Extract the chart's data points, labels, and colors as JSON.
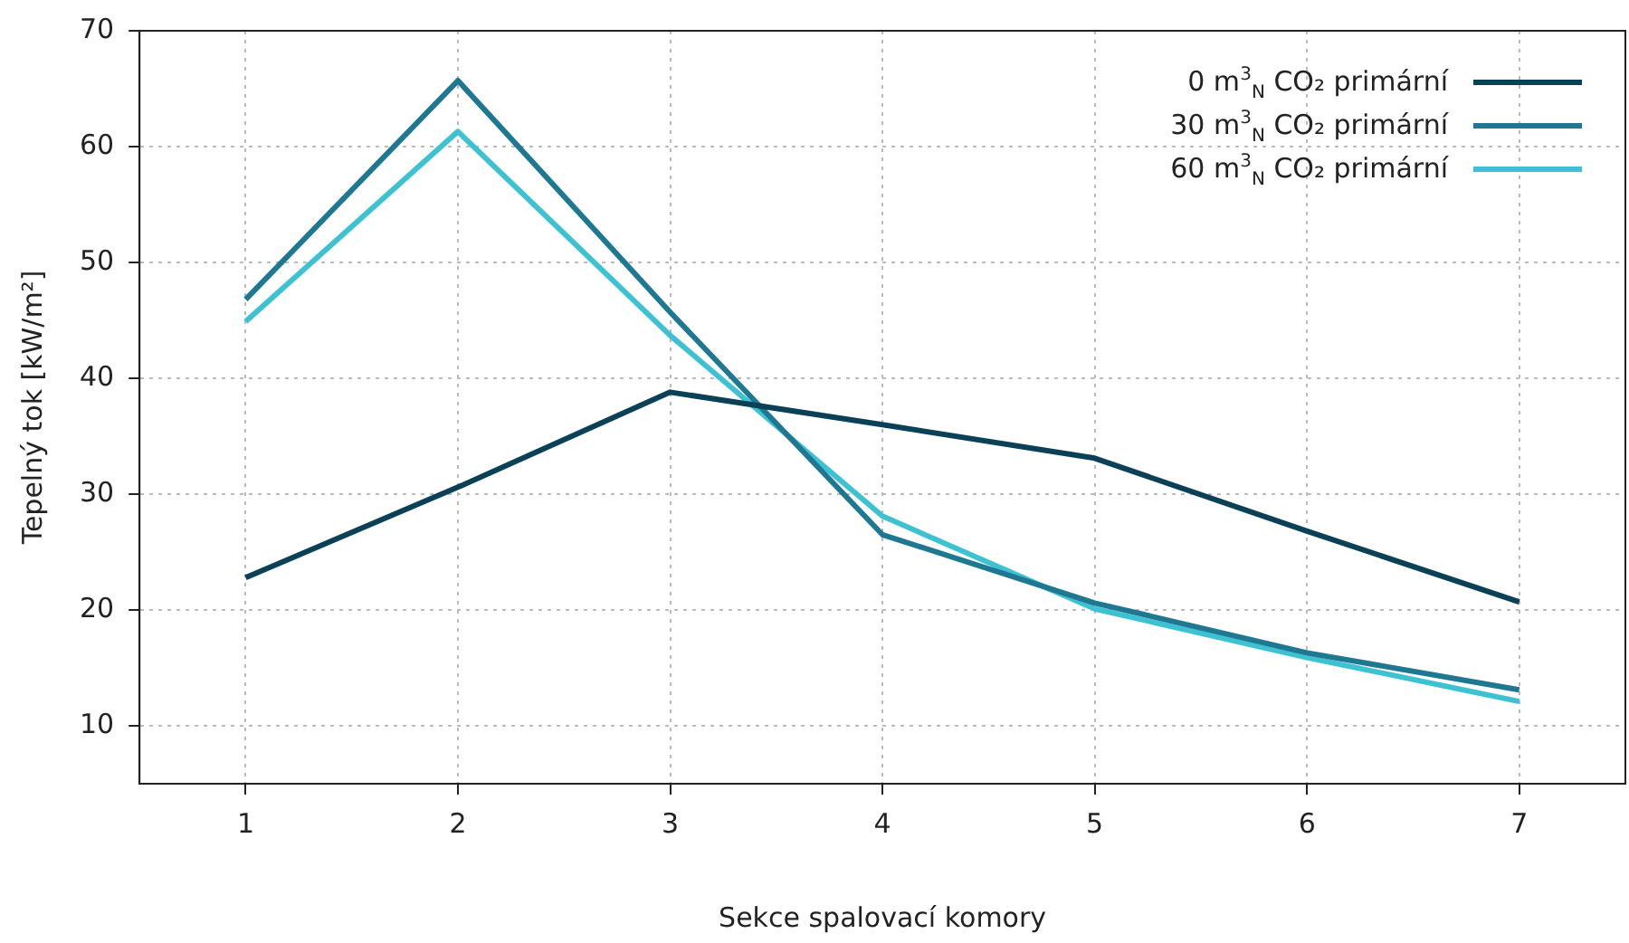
{
  "chart_data": {
    "type": "line",
    "xlabel": "Sekce spalovací komory",
    "ylabel": "Tepelný tok [kW/m²]",
    "x": [
      1,
      2,
      3,
      4,
      5,
      6,
      7
    ],
    "series": [
      {
        "name": "0 m$^{3}$$_{N}$  CO₂  primární",
        "color": "#0b4157",
        "values": [
          22.8,
          30.6,
          38.8,
          36.0,
          33.1,
          26.8,
          20.7
        ]
      },
      {
        "name": "30 m$^{3}$$_{N}$  CO₂  primární",
        "color": "#1e7891",
        "values": [
          46.8,
          65.7,
          45.7,
          26.5,
          20.6,
          16.3,
          13.1
        ]
      },
      {
        "name": "60 m$^{3}$$_{N}$  CO₂  primární",
        "color": "#3ec2d2",
        "values": [
          44.9,
          61.3,
          43.7,
          28.1,
          20.1,
          15.9,
          12.1
        ]
      }
    ],
    "xlim": [
      0.5,
      7.5
    ],
    "xticks": [
      1,
      2,
      3,
      4,
      5,
      6,
      7
    ],
    "ylim": [
      5,
      70
    ],
    "yticks": [
      10,
      20,
      30,
      40,
      50,
      60,
      70
    ],
    "grid": true,
    "legend": "top right",
    "marker": "none",
    "line_style": "solid"
  }
}
